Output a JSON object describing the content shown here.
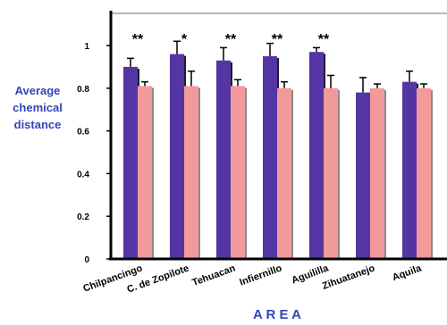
{
  "chart_data": {
    "type": "bar",
    "xlabel": "A R E A",
    "ylabel": [
      "Average",
      "chemical",
      "distance"
    ],
    "ylim": [
      0,
      1.2
    ],
    "yticks": [
      "0",
      "0.2",
      "0.4",
      "0.6",
      "0.8",
      "1"
    ],
    "categories": [
      "Chilpancingo",
      "C. de Zopilote",
      "Tehuacan",
      "Infiernillo",
      "Aguililla",
      "Zihuatanejo",
      "Aquila"
    ],
    "series": [
      {
        "values": [
          0.9,
          0.96,
          0.93,
          0.95,
          0.97,
          0.78,
          0.83
        ],
        "errors": [
          0.04,
          0.06,
          0.06,
          0.06,
          0.02,
          0.07,
          0.05
        ]
      },
      {
        "values": [
          0.81,
          0.81,
          0.81,
          0.8,
          0.8,
          0.8,
          0.8
        ],
        "errors": [
          0.02,
          0.07,
          0.03,
          0.03,
          0.06,
          0.02,
          0.02
        ]
      }
    ],
    "significance": [
      "**",
      "*",
      "**",
      "**",
      "**",
      "",
      ""
    ],
    "colors": {
      "series1": "#5535a3",
      "series2": "#f29a9a",
      "series1_shadow": "#1e1a3a",
      "series2_shadow": "#8a8a8a",
      "label": "#3346b8"
    },
    "grid": false
  }
}
